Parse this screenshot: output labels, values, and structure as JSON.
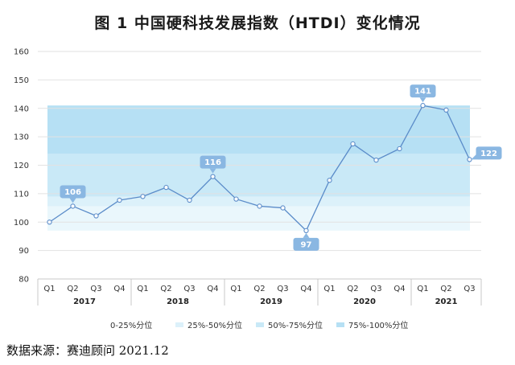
{
  "title": "图 1 中国硬科技发展指数（HTDI）变化情况",
  "source": "数据来源：赛迪顾问 2021.12",
  "colors": {
    "line": "#5b8cc9",
    "callout": "#8ab7e2",
    "band_0_25": "#eaf7fc",
    "band_25_50": "#dcf1fa",
    "band_50_75": "#c9e9f7",
    "band_75_100": "#b6e0f4",
    "grid": "#e2e2e2"
  },
  "legend": [
    {
      "label": "0-25%分位",
      "color": "#ffffff"
    },
    {
      "label": "25%-50%分位",
      "color": "#dcf1fa"
    },
    {
      "label": "50%-75%分位",
      "color": "#c9e9f7"
    },
    {
      "label": "75%-100%分位",
      "color": "#b6e0f4"
    }
  ],
  "chart_data": {
    "type": "line",
    "title": "图 1 中国硬科技发展指数（HTDI）变化情况",
    "xlabel": "",
    "ylabel": "",
    "ylim": [
      80,
      160
    ],
    "yticks": [
      80,
      90,
      100,
      110,
      120,
      130,
      140,
      150,
      160
    ],
    "grid": true,
    "legend_position": "bottom",
    "categories": [
      "Q1",
      "Q2",
      "Q3",
      "Q4",
      "Q1",
      "Q2",
      "Q3",
      "Q4",
      "Q1",
      "Q2",
      "Q3",
      "Q4",
      "Q1",
      "Q2",
      "Q3",
      "Q4",
      "Q1",
      "Q2",
      "Q3"
    ],
    "year_groups": [
      {
        "label": "2017",
        "count": 4
      },
      {
        "label": "2018",
        "count": 4
      },
      {
        "label": "2019",
        "count": 4
      },
      {
        "label": "2020",
        "count": 4
      },
      {
        "label": "2021",
        "count": 3
      }
    ],
    "series": [
      {
        "values": [
          100,
          105.6,
          102.2,
          107.7,
          109,
          112.2,
          107.7,
          116,
          108.1,
          105.6,
          105,
          97,
          114.7,
          127.5,
          121.8,
          125.8,
          141,
          139.4,
          122
        ]
      }
    ],
    "quartile_bands": [
      {
        "label": "0-25%分位",
        "range": [
          97,
          105.6
        ]
      },
      {
        "label": "25%-50%分位",
        "range": [
          105.6,
          109
        ]
      },
      {
        "label": "50%-75%分位",
        "range": [
          109,
          124
        ]
      },
      {
        "label": "75%-100%分位",
        "range": [
          124,
          141
        ]
      }
    ],
    "annotations": [
      {
        "index": 1,
        "label": "106"
      },
      {
        "index": 7,
        "label": "116"
      },
      {
        "index": 11,
        "label": "97"
      },
      {
        "index": 16,
        "label": "141"
      },
      {
        "index": 18,
        "label": "122"
      }
    ]
  }
}
